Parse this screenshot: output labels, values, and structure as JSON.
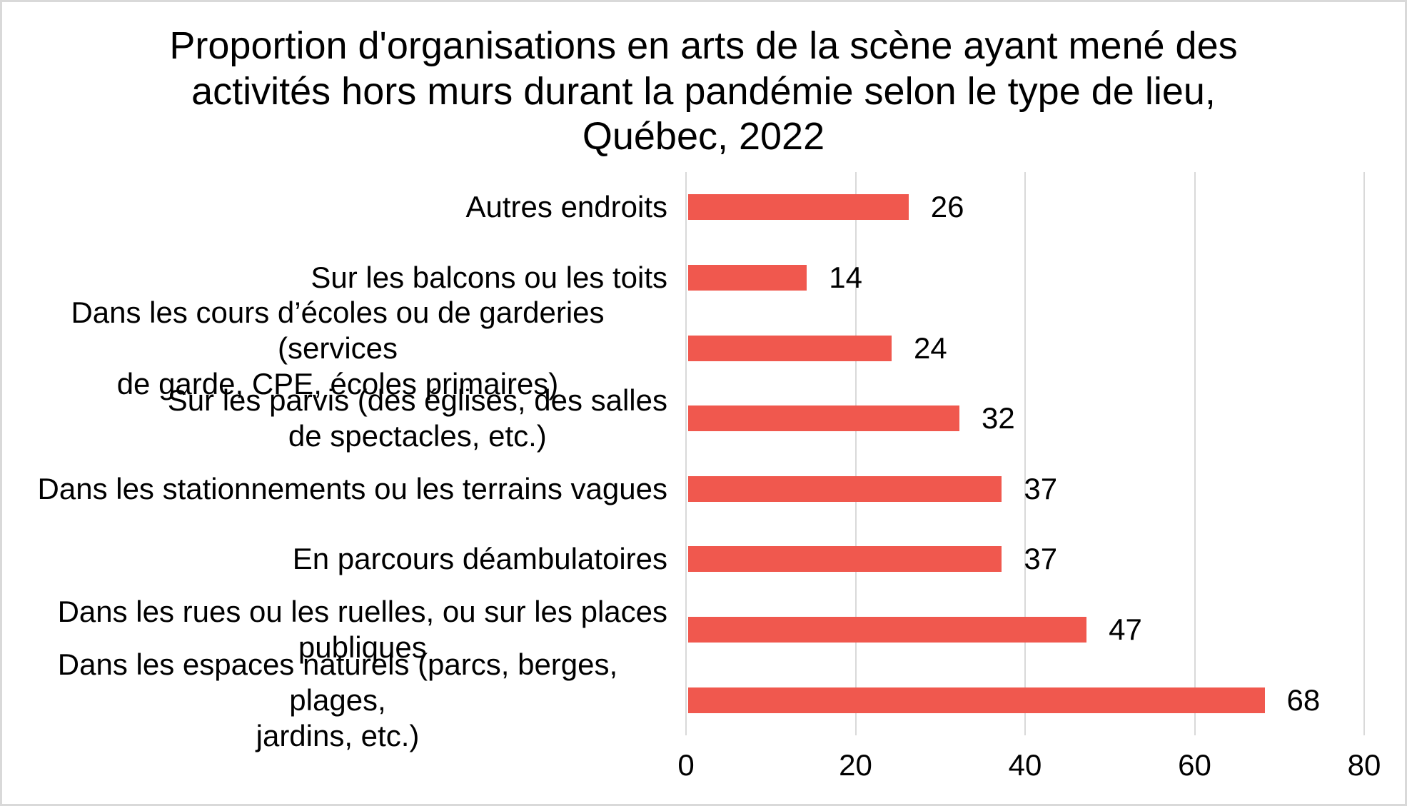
{
  "chart_data": {
    "type": "bar",
    "orientation": "horizontal",
    "title": "Proportion d'organisations en arts de la scène ayant mené des\nactivités hors murs durant la pandémie selon le type de lieu,\nQuébec, 2022",
    "categories": [
      [
        "Autres endroits"
      ],
      [
        "Sur les balcons ou les toits"
      ],
      [
        "Dans les cours d’écoles ou de garderies (services",
        "de garde, CPE, écoles primaires)"
      ],
      [
        "Sur les parvis (des églises, des salles",
        "de spectacles, etc.)"
      ],
      [
        "Dans les stationnements ou les terrains vagues"
      ],
      [
        "En parcours déambulatoires"
      ],
      [
        "Dans les rues ou les ruelles, ou sur les places",
        "publiques"
      ],
      [
        "Dans les espaces naturels (parcs, berges, plages,",
        "jardins, etc.)"
      ]
    ],
    "values": [
      26,
      14,
      24,
      32,
      37,
      37,
      47,
      68
    ],
    "data_labels_shown": true,
    "xlim": [
      0,
      80
    ],
    "x_ticks": [
      0,
      20,
      40,
      60,
      80
    ],
    "xlabel": "",
    "ylabel": "",
    "grid": true,
    "legend": "none",
    "colors": {
      "bar": "#F0584E",
      "gridline": "#D9D9D9",
      "border": "#D9D9D9",
      "text": "#000000",
      "background": "#FFFFFF"
    }
  }
}
